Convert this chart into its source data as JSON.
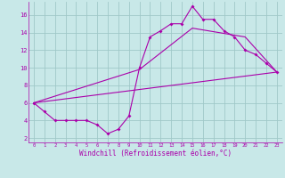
{
  "xlabel": "Windchill (Refroidissement éolien,°C)",
  "bg_color": "#c8e8e8",
  "line_color": "#aa00aa",
  "grid_color": "#a0c8c8",
  "series1_x": [
    0,
    1,
    2,
    3,
    4,
    5,
    6,
    7,
    8,
    9,
    10,
    11,
    12,
    13,
    14,
    15,
    16,
    17,
    18,
    19,
    20,
    21,
    22,
    23
  ],
  "series1_y": [
    6.0,
    5.0,
    4.0,
    4.0,
    4.0,
    4.0,
    3.5,
    2.5,
    3.0,
    4.5,
    10.0,
    13.5,
    14.2,
    15.0,
    15.0,
    17.0,
    15.5,
    15.5,
    14.2,
    13.5,
    12.0,
    11.5,
    10.5,
    9.5
  ],
  "series2_x": [
    0,
    23
  ],
  "series2_y": [
    6.0,
    9.5
  ],
  "series3_x": [
    0,
    10,
    15,
    20,
    23
  ],
  "series3_y": [
    6.0,
    9.8,
    14.5,
    13.5,
    9.5
  ],
  "xlim": [
    -0.5,
    23.5
  ],
  "ylim": [
    1.5,
    17.5
  ],
  "xticks": [
    0,
    1,
    2,
    3,
    4,
    5,
    6,
    7,
    8,
    9,
    10,
    11,
    12,
    13,
    14,
    15,
    16,
    17,
    18,
    19,
    20,
    21,
    22,
    23
  ],
  "yticks": [
    2,
    4,
    6,
    8,
    10,
    12,
    14,
    16
  ]
}
